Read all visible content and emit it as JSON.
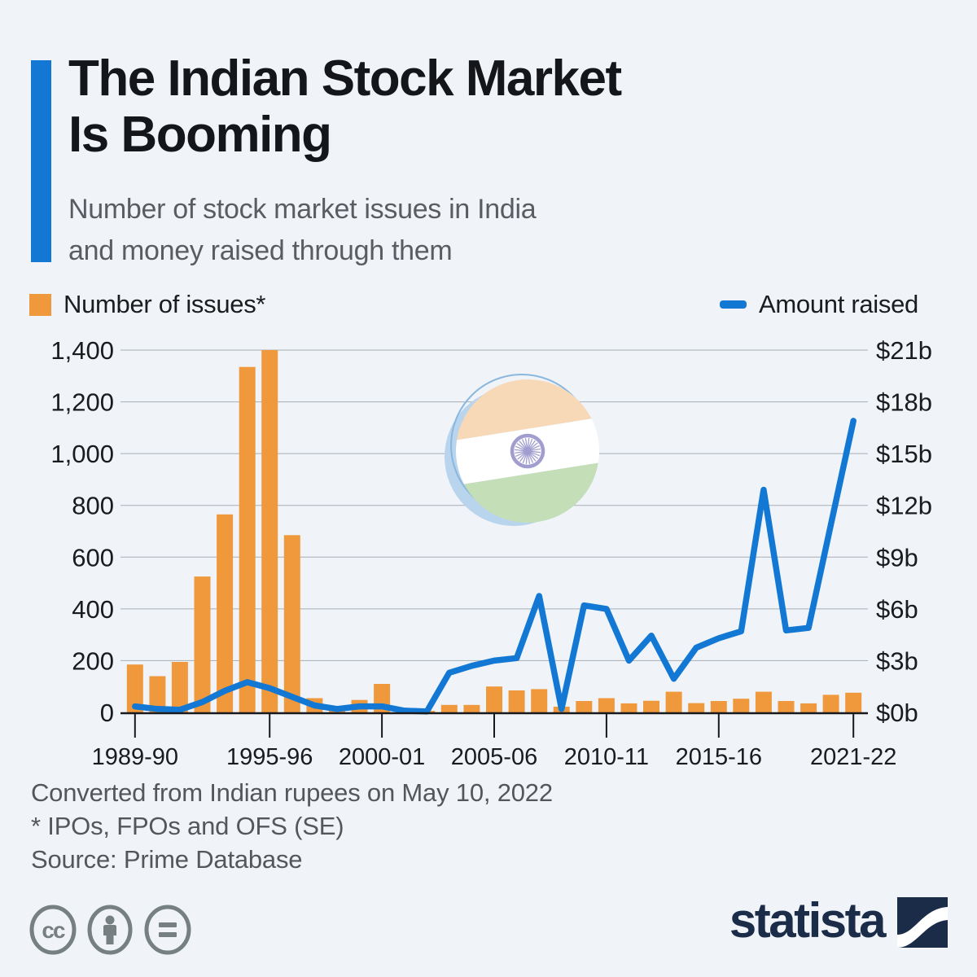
{
  "header": {
    "title_line1": "The Indian Stock Market",
    "title_line2": "Is Booming",
    "subtitle_line1": "Number of stock market issues in India",
    "subtitle_line2": "and money raised through them"
  },
  "legend": {
    "bars_label": "Number of issues*",
    "line_label": "Amount raised"
  },
  "chart_data": {
    "type": "bar+line",
    "title": "The Indian Stock Market Is Booming",
    "subtitle": "Number of stock market issues in India and money raised through them",
    "categories": [
      "1989-90",
      "1990-91",
      "1991-92",
      "1992-93",
      "1993-94",
      "1994-95",
      "1995-96",
      "1996-97",
      "1997-98",
      "1998-99",
      "1999-00",
      "2000-01",
      "2001-02",
      "2002-03",
      "2003-04",
      "2004-05",
      "2005-06",
      "2006-07",
      "2007-08",
      "2008-09",
      "2009-10",
      "2010-11",
      "2011-12",
      "2012-13",
      "2013-14",
      "2014-15",
      "2015-16",
      "2016-17",
      "2017-18",
      "2018-19",
      "2019-20",
      "2020-21",
      "2021-22"
    ],
    "series": [
      {
        "name": "Number of issues*",
        "type": "bar",
        "axis": "left",
        "color": "#F0993C",
        "values": [
          185,
          140,
          195,
          525,
          765,
          1335,
          1400,
          685,
          55,
          18,
          48,
          110,
          7,
          6,
          29,
          29,
          100,
          85,
          90,
          22,
          44,
          55,
          35,
          45,
          80,
          36,
          44,
          53,
          80,
          44,
          35,
          68,
          76
        ]
      },
      {
        "name": "Amount raised",
        "type": "line",
        "axis": "right",
        "color": "#1278D4",
        "values": [
          0.35,
          0.2,
          0.15,
          0.6,
          1.25,
          1.75,
          1.4,
          0.9,
          0.4,
          0.2,
          0.35,
          0.35,
          0.1,
          0.05,
          2.3,
          2.7,
          3.0,
          3.15,
          6.75,
          0.2,
          6.2,
          6.0,
          3.0,
          4.45,
          1.95,
          3.75,
          4.3,
          4.7,
          12.9,
          4.75,
          4.9,
          10.9,
          16.9
        ]
      }
    ],
    "left_axis": {
      "max": 1400,
      "tick_values": [
        0,
        200,
        400,
        600,
        800,
        1000,
        1200,
        1400
      ],
      "tick_labels": [
        "0",
        "200",
        "400",
        "600",
        "800",
        "1,000",
        "1,200",
        "1,400"
      ]
    },
    "right_axis": {
      "max": 21,
      "tick_values": [
        0,
        3,
        6,
        9,
        12,
        15,
        18,
        21
      ],
      "tick_labels": [
        "$0b",
        "$3b",
        "$6b",
        "$9b",
        "$12b",
        "$15b",
        "$18b",
        "$21b"
      ]
    },
    "x_tick_labels": [
      "1989-90",
      "1995-96",
      "2000-01",
      "2005-06",
      "2010-11",
      "2015-16",
      "2021-22"
    ],
    "grid": true,
    "legend_position": "top"
  },
  "flag": {
    "saffron": "#F7D8B7",
    "white": "#FFFFFF",
    "green": "#C4DEB8",
    "chakra": "#A19ECF",
    "halo": "#B9D4ED",
    "ring": "#8AB7DD"
  },
  "colors": {
    "background": "#F0F4F9",
    "gridline": "#A7AEB4",
    "axis": "#17191C",
    "accent_blue": "#1278D4",
    "bar_orange": "#F0993C",
    "navy": "#1B2C49",
    "footer_gray": "#54575A",
    "license_gray": "#768081"
  },
  "footer": {
    "note1": "Converted from Indian rupees on May 10, 2022",
    "note2": "* IPOs, FPOs and OFS (SE)",
    "source": "Source: Prime Database"
  },
  "branding": {
    "wordmark": "statista"
  },
  "license_icons": [
    "cc-icon",
    "attribution-person-icon",
    "equals-icon"
  ]
}
